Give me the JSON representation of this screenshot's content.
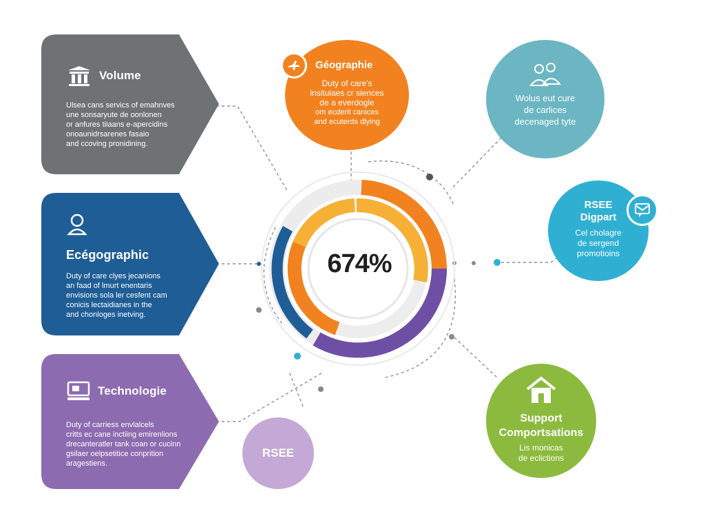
{
  "center": {
    "value": "674%"
  },
  "colors": {
    "gray": "#6f7273",
    "blue": "#1f5d96",
    "purple": "#8d6bb0",
    "orange": "#f2821f",
    "teal": "#6bb6c2",
    "cyan": "#2fb0d2",
    "green": "#8cba3e",
    "lilac": "#c4a8d6",
    "yellow": "#f7b036",
    "violet": "#6e4fa6"
  },
  "cards": [
    {
      "title": "Volume",
      "icon": "building-icon",
      "lines": [
        "Ulsea cans servics of emahnves",
        "une sonsaryute de oonlonen",
        "or anfures tiiaans e-apercidins",
        "onoaunidrsarenes fasaio",
        "and ccoving pronidining."
      ]
    },
    {
      "title": "Ecégographic",
      "icon": "person-icon",
      "lines": [
        "Duty of care clyes jecanions",
        "an faad of lmurt enentaris",
        "envisions sola ler cesfent cam",
        "conicis lectaidianes in the",
        "and chonloges inetving."
      ]
    },
    {
      "title": "Technologie",
      "icon": "computer-icon",
      "lines": [
        "Duty of carriess envlalcels",
        "critts ec cane inctiing emirenlions",
        "drecanteratler tank coan or cucinn",
        "gsilaer oelpsetitice conprition",
        "aragestiens."
      ]
    }
  ],
  "circles": {
    "geographie": {
      "title": "Géographie",
      "icon": "plane-icon",
      "lines": [
        "Duty of care's",
        "insitulaes cr siences",
        "de a everdogle",
        "om ecderit canices",
        "and ecuterds dlying"
      ]
    },
    "volume_care": {
      "icon": "people-icon",
      "lines": [
        "Wolus eut cure",
        "de carlices",
        "decenaged tyte"
      ]
    },
    "rse": {
      "title": "RSEE",
      "subtitle": "Digpart",
      "icon": "chat-icon",
      "lines": [
        "Cel cholagre",
        "de sergend",
        "promotioins"
      ]
    },
    "support": {
      "title": "Support",
      "subtitle": "Comportsations",
      "icon": "house-icon",
      "lines": [
        "Lis monicas",
        "de eclictions"
      ]
    },
    "rsee_small": {
      "title": "RSEE"
    }
  }
}
